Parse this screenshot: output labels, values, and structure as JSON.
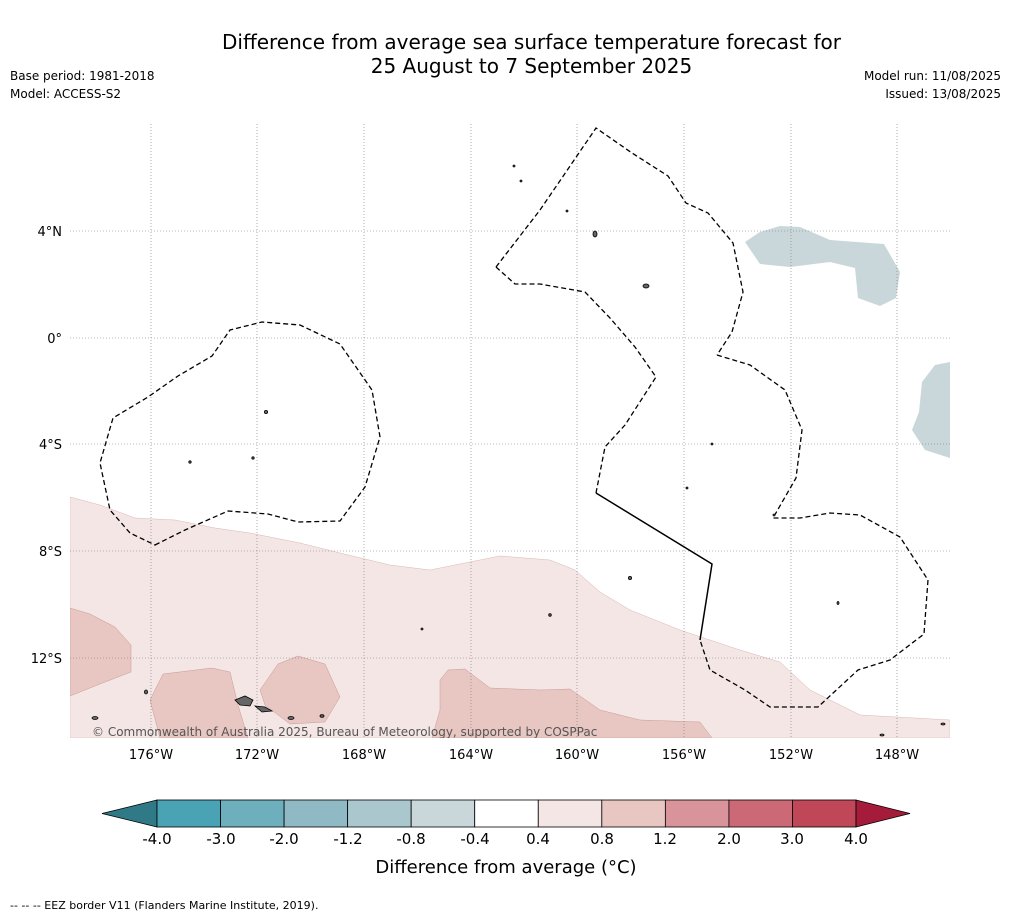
{
  "title_line1": "Difference from average sea surface temperature forecast for",
  "title_line2": "25 August to 7 September 2025",
  "base_period": "Base period: 1981-2018",
  "model": "Model: ACCESS-S2",
  "model_run": "Model run: 11/08/2025",
  "issued": "Issued: 13/08/2025",
  "copyright": "© Commonwealth of Australia 2025, Bureau of Meteorology, supported by COSPPac",
  "footnote": "--  --  -- EEZ border V11 (Flanders Marine Institute, 2019).",
  "map": {
    "lon_ticks": [
      "176°W",
      "172°W",
      "168°W",
      "164°W",
      "160°W",
      "156°W",
      "152°W",
      "148°W"
    ],
    "lat_ticks": [
      "4°N",
      "0°",
      "4°S",
      "8°S",
      "12°S"
    ]
  },
  "colorbar": {
    "label": "Difference from average (°C)",
    "tick_labels": [
      "-4.0",
      "-3.0",
      "-2.0",
      "-1.2",
      "-0.8",
      "-0.4",
      "0.4",
      "0.8",
      "1.2",
      "2.0",
      "3.0",
      "4.0"
    ],
    "colors": [
      "#2f7a86",
      "#4aa3b4",
      "#6dafbd",
      "#8fbac5",
      "#a9c7cd",
      "#c9d7db",
      "#ffffff",
      "#f4e6e5",
      "#e8c6c2",
      "#d9939a",
      "#cb6a76",
      "#c04758",
      "#a51c3a"
    ]
  }
}
